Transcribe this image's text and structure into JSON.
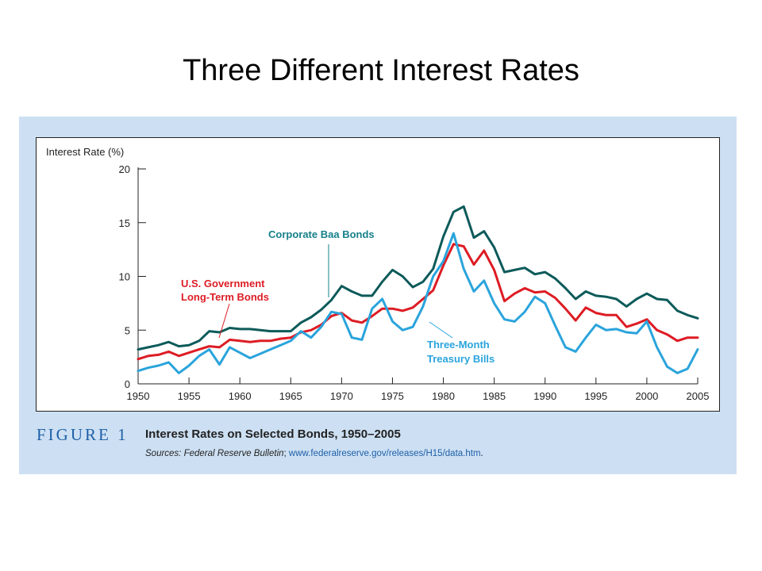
{
  "page": {
    "title": "Three Different Interest Rates",
    "figure": {
      "number": "FIGURE 1",
      "caption": "Interest Rates on Selected Bonds, 1950–2005",
      "sources_label": "Sources:",
      "sources_publication": "Federal Reserve Bulletin",
      "sources_separator": "; ",
      "sources_url": "www.federalreserve.gov/releases/H15/data.htm",
      "sources_end": "."
    }
  },
  "chart_data": {
    "type": "line",
    "title": "",
    "xlabel": "",
    "ylabel": "Interest Rate (%)",
    "xlim": [
      1950,
      2005
    ],
    "ylim": [
      0,
      20
    ],
    "xticks": [
      "1950",
      "1955",
      "1960",
      "1965",
      "1970",
      "1975",
      "1980",
      "1985",
      "1990",
      "1995",
      "2000",
      "2005"
    ],
    "yticks": [
      "0",
      "5",
      "10",
      "15",
      "20"
    ],
    "grid": false,
    "series": [
      {
        "name": "Corporate Baa Bonds",
        "color": "#0d5a5a",
        "points": [
          [
            1950,
            3.2
          ],
          [
            1951,
            3.4
          ],
          [
            1952,
            3.6
          ],
          [
            1953,
            3.9
          ],
          [
            1954,
            3.5
          ],
          [
            1955,
            3.6
          ],
          [
            1956,
            4.0
          ],
          [
            1957,
            4.9
          ],
          [
            1958,
            4.8
          ],
          [
            1959,
            5.2
          ],
          [
            1960,
            5.1
          ],
          [
            1961,
            5.1
          ],
          [
            1962,
            5.0
          ],
          [
            1963,
            4.9
          ],
          [
            1964,
            4.9
          ],
          [
            1965,
            4.9
          ],
          [
            1966,
            5.7
          ],
          [
            1967,
            6.2
          ],
          [
            1968,
            6.9
          ],
          [
            1969,
            7.8
          ],
          [
            1970,
            9.1
          ],
          [
            1971,
            8.6
          ],
          [
            1972,
            8.2
          ],
          [
            1973,
            8.2
          ],
          [
            1974,
            9.5
          ],
          [
            1975,
            10.6
          ],
          [
            1976,
            10.0
          ],
          [
            1977,
            9.0
          ],
          [
            1978,
            9.5
          ],
          [
            1979,
            10.7
          ],
          [
            1980,
            13.7
          ],
          [
            1981,
            16.0
          ],
          [
            1982,
            16.5
          ],
          [
            1983,
            13.6
          ],
          [
            1984,
            14.2
          ],
          [
            1985,
            12.7
          ],
          [
            1986,
            10.4
          ],
          [
            1987,
            10.6
          ],
          [
            1988,
            10.8
          ],
          [
            1989,
            10.2
          ],
          [
            1990,
            10.4
          ],
          [
            1991,
            9.8
          ],
          [
            1992,
            8.9
          ],
          [
            1993,
            7.9
          ],
          [
            1994,
            8.6
          ],
          [
            1995,
            8.2
          ],
          [
            1996,
            8.1
          ],
          [
            1997,
            7.9
          ],
          [
            1998,
            7.2
          ],
          [
            1999,
            7.9
          ],
          [
            2000,
            8.4
          ],
          [
            2001,
            7.9
          ],
          [
            2002,
            7.8
          ],
          [
            2003,
            6.8
          ],
          [
            2004,
            6.4
          ],
          [
            2005,
            6.1
          ]
        ]
      },
      {
        "name": "U.S. Government Long-Term Bonds",
        "color": "#dd1c24",
        "points": [
          [
            1950,
            2.3
          ],
          [
            1951,
            2.6
          ],
          [
            1952,
            2.7
          ],
          [
            1953,
            3.0
          ],
          [
            1954,
            2.6
          ],
          [
            1955,
            2.9
          ],
          [
            1956,
            3.2
          ],
          [
            1957,
            3.5
          ],
          [
            1958,
            3.4
          ],
          [
            1959,
            4.1
          ],
          [
            1960,
            4.0
          ],
          [
            1961,
            3.9
          ],
          [
            1962,
            4.0
          ],
          [
            1963,
            4.0
          ],
          [
            1964,
            4.2
          ],
          [
            1965,
            4.3
          ],
          [
            1966,
            4.8
          ],
          [
            1967,
            5.0
          ],
          [
            1968,
            5.5
          ],
          [
            1969,
            6.3
          ],
          [
            1970,
            6.6
          ],
          [
            1971,
            5.9
          ],
          [
            1972,
            5.7
          ],
          [
            1973,
            6.3
          ],
          [
            1974,
            7.0
          ],
          [
            1975,
            7.0
          ],
          [
            1976,
            6.8
          ],
          [
            1977,
            7.1
          ],
          [
            1978,
            7.9
          ],
          [
            1979,
            8.7
          ],
          [
            1980,
            11.0
          ],
          [
            1981,
            13.0
          ],
          [
            1982,
            12.8
          ],
          [
            1983,
            11.1
          ],
          [
            1984,
            12.4
          ],
          [
            1985,
            10.6
          ],
          [
            1986,
            7.7
          ],
          [
            1987,
            8.4
          ],
          [
            1988,
            8.9
          ],
          [
            1989,
            8.5
          ],
          [
            1990,
            8.6
          ],
          [
            1991,
            8.0
          ],
          [
            1992,
            7.0
          ],
          [
            1993,
            5.9
          ],
          [
            1994,
            7.1
          ],
          [
            1995,
            6.6
          ],
          [
            1996,
            6.4
          ],
          [
            1997,
            6.4
          ],
          [
            1998,
            5.3
          ],
          [
            1999,
            5.6
          ],
          [
            2000,
            6.0
          ],
          [
            2001,
            5.0
          ],
          [
            2002,
            4.6
          ],
          [
            2003,
            4.0
          ],
          [
            2004,
            4.3
          ],
          [
            2005,
            4.3
          ]
        ]
      },
      {
        "name": "Three-Month Treasury Bills",
        "color": "#2aa4dc",
        "points": [
          [
            1950,
            1.2
          ],
          [
            1951,
            1.5
          ],
          [
            1952,
            1.7
          ],
          [
            1953,
            2.0
          ],
          [
            1954,
            1.0
          ],
          [
            1955,
            1.7
          ],
          [
            1956,
            2.6
          ],
          [
            1957,
            3.2
          ],
          [
            1958,
            1.8
          ],
          [
            1959,
            3.4
          ],
          [
            1960,
            2.9
          ],
          [
            1961,
            2.4
          ],
          [
            1962,
            2.8
          ],
          [
            1963,
            3.2
          ],
          [
            1964,
            3.6
          ],
          [
            1965,
            4.0
          ],
          [
            1966,
            4.9
          ],
          [
            1967,
            4.3
          ],
          [
            1968,
            5.3
          ],
          [
            1969,
            6.7
          ],
          [
            1970,
            6.5
          ],
          [
            1971,
            4.3
          ],
          [
            1972,
            4.1
          ],
          [
            1973,
            7.0
          ],
          [
            1974,
            7.9
          ],
          [
            1975,
            5.8
          ],
          [
            1976,
            5.0
          ],
          [
            1977,
            5.3
          ],
          [
            1978,
            7.2
          ],
          [
            1979,
            10.0
          ],
          [
            1980,
            11.4
          ],
          [
            1981,
            14.0
          ],
          [
            1982,
            10.7
          ],
          [
            1983,
            8.6
          ],
          [
            1984,
            9.6
          ],
          [
            1985,
            7.5
          ],
          [
            1986,
            6.0
          ],
          [
            1987,
            5.8
          ],
          [
            1988,
            6.7
          ],
          [
            1989,
            8.1
          ],
          [
            1990,
            7.5
          ],
          [
            1991,
            5.4
          ],
          [
            1992,
            3.4
          ],
          [
            1993,
            3.0
          ],
          [
            1994,
            4.3
          ],
          [
            1995,
            5.5
          ],
          [
            1996,
            5.0
          ],
          [
            1997,
            5.1
          ],
          [
            1998,
            4.8
          ],
          [
            1999,
            4.7
          ],
          [
            2000,
            5.8
          ],
          [
            2001,
            3.4
          ],
          [
            2002,
            1.6
          ],
          [
            2003,
            1.0
          ],
          [
            2004,
            1.4
          ],
          [
            2005,
            3.2
          ]
        ]
      }
    ],
    "annotations": {
      "corporate": "Corporate Baa Bonds",
      "government_line1": "U.S. Government",
      "government_line2": "Long-Term Bonds",
      "tbill_line1": "Three-Month",
      "tbill_line2": "Treasury Bills"
    }
  }
}
